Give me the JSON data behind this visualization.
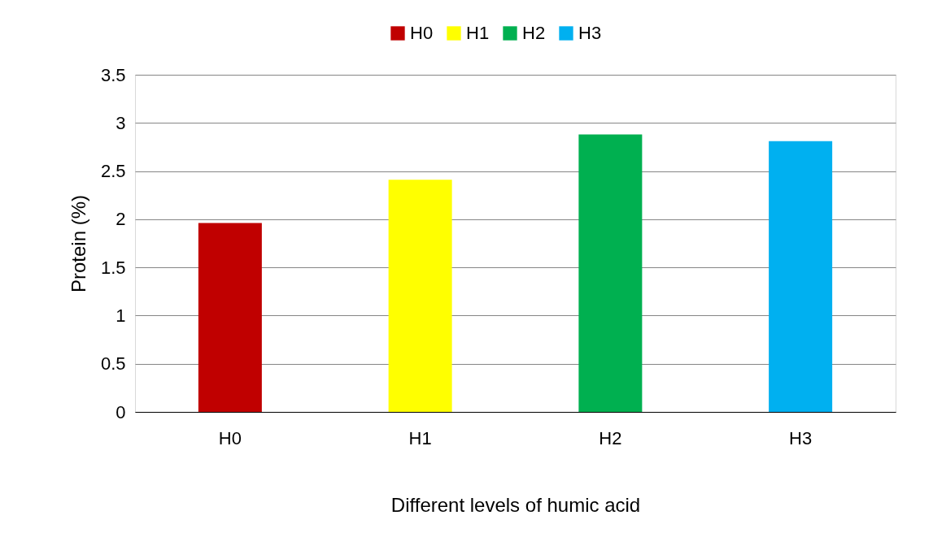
{
  "chart_data": {
    "type": "bar",
    "xlabel": "Different levels of humic acid",
    "ylabel": "Protein (%)",
    "categories": [
      "H0",
      "H1",
      "H2",
      "H3"
    ],
    "stacked": true,
    "series": [
      {
        "name": "H0",
        "color": "#c00000",
        "values": [
          1.96,
          null,
          null,
          null
        ]
      },
      {
        "name": "H1",
        "color": "#ffff00",
        "values": [
          null,
          2.41,
          null,
          null
        ]
      },
      {
        "name": "H2",
        "color": "#00b050",
        "values": [
          null,
          null,
          2.88,
          null
        ]
      },
      {
        "name": "H3",
        "color": "#00b0f0",
        "values": [
          null,
          null,
          null,
          2.81
        ]
      }
    ],
    "ylim": [
      0,
      3.5
    ],
    "yticks": [
      0,
      0.5,
      1,
      1.5,
      2,
      2.5,
      3,
      3.5
    ],
    "grid": "y",
    "legend": "top"
  }
}
